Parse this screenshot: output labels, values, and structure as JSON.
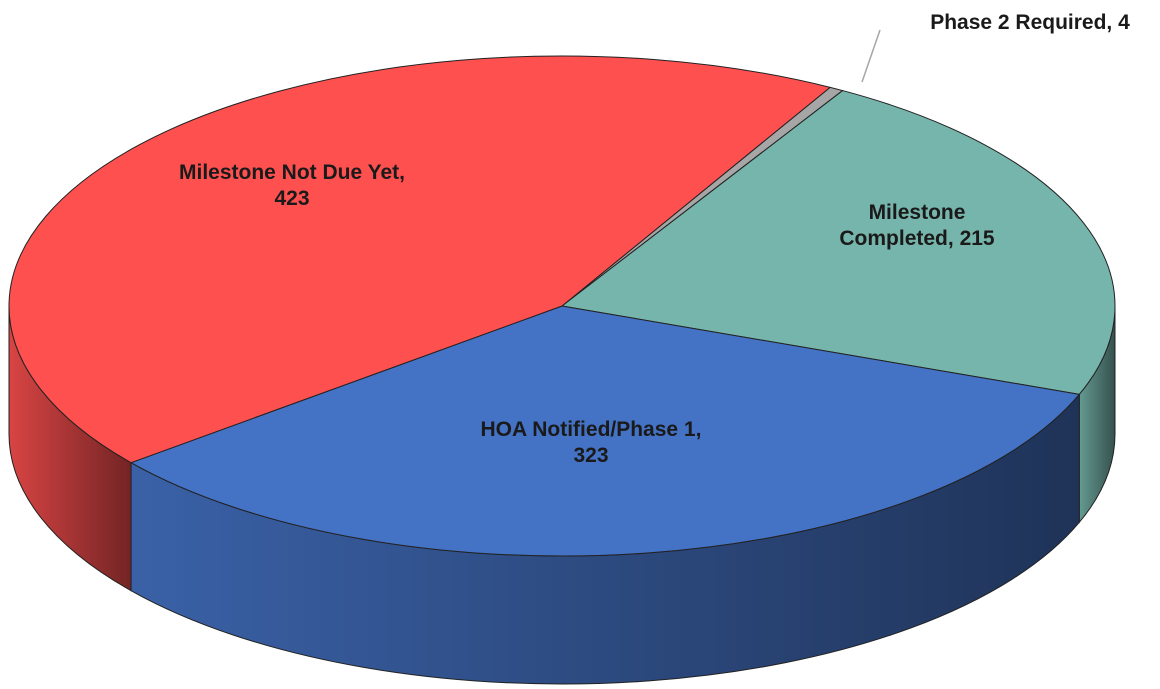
{
  "chart_data": {
    "type": "pie3d",
    "categories": [
      "Phase 2 Required",
      "Milestone Completed",
      "HOA Notified/Phase 1",
      "Milestone Not Due Yet"
    ],
    "values": [
      4,
      215,
      323,
      423
    ],
    "colors": [
      "#a6a6a6",
      "#76b5ab",
      "#4472c4",
      "#ff5050"
    ],
    "label_separator": ","
  }
}
